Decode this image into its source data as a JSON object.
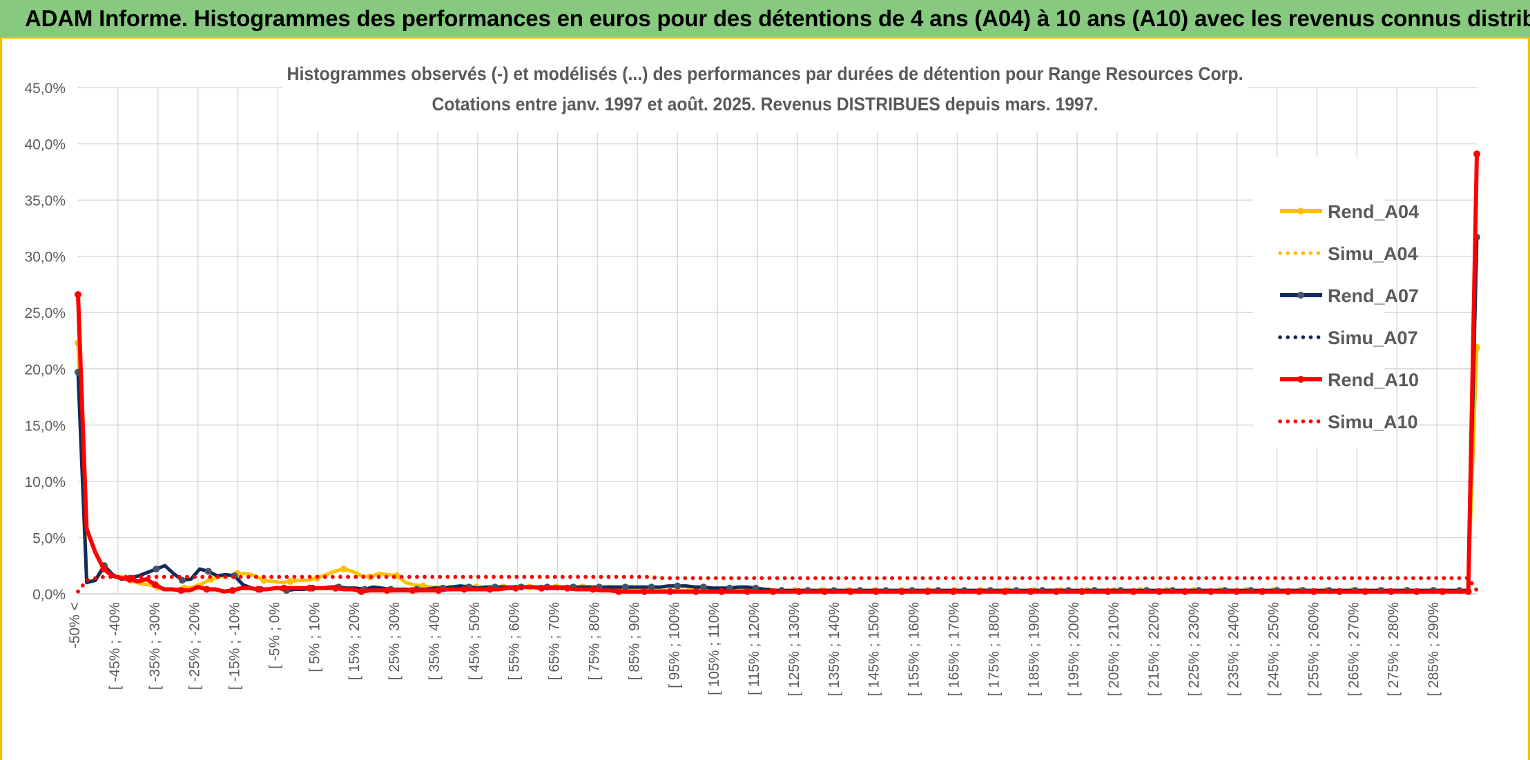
{
  "header": {
    "title": "ADAM Informe. Histogrammes des performances en euros pour des détentions de 4 ans (A04) à 10 ans (A10) avec les revenus connus distribués"
  },
  "chart_data": {
    "type": "line",
    "title_line1": "Histogrammes observés (-) et modélisés (...) des performances par durées de détention pour Range Resources Corp.",
    "title_line2": "Cotations entre janv. 1997 et août. 2025. Revenus DISTRIBUES depuis mars. 1997.",
    "ylim": [
      0,
      0.45
    ],
    "yticks": [
      "0,0%",
      "5,0%",
      "10,0%",
      "15,0%",
      "20,0%",
      "25,0%",
      "30,0%",
      "35,0%",
      "40,0%",
      "45,0%"
    ],
    "xtick_labels": [
      "-50% <",
      "[ -45% ; -40%",
      "[ -35% ; -30%",
      "[ -25% ; -20%",
      "[ -15% ; -10%",
      "[ -5% ; 0%",
      "[ 5% ; 10%",
      "[ 15% ; 20%",
      "[ 25% ; 30%",
      "[ 35% ; 40%",
      "[ 45% ; 50%",
      "[ 55% ; 60%",
      "[ 65% ; 70%",
      "[ 75% ; 80%",
      "[ 85% ; 90%",
      "[ 95% ; 100%",
      "[ 105% ; 110%",
      "[ 115% ; 120%",
      "[ 125% ; 130%",
      "[ 135% ; 140%",
      "[ 145% ; 150%",
      "[ 155% ; 160%",
      "[ 165% ; 170%",
      "[ 175% ; 180%",
      "[ 185% ; 190%",
      "[ 195% ; 200%",
      "[ 205% ; 210%",
      "[ 215% ; 220%",
      "[ 225% ; 230%",
      "[ 235% ; 240%",
      "[ 245% ; 250%",
      "[ 255% ; 260%",
      "[ 265% ; 270%",
      "[ 275% ; 280%",
      "[ 285% ; 290%"
    ],
    "legend": {
      "position": "right"
    },
    "grid": true,
    "series": [
      {
        "name": "Rend_A04",
        "style": "solid",
        "color": "#ffc000",
        "values": [
          0.223,
          0.01,
          0.012,
          0.025,
          0.016,
          0.015,
          0.012,
          0.009,
          0.008,
          0.006,
          0.004,
          0.004,
          0.005,
          0.006,
          0.009,
          0.013,
          0.015,
          0.016,
          0.018,
          0.018,
          0.016,
          0.012,
          0.011,
          0.01,
          0.011,
          0.012,
          0.012,
          0.014,
          0.017,
          0.02,
          0.022,
          0.02,
          0.016,
          0.015,
          0.018,
          0.017,
          0.016,
          0.01,
          0.008,
          0.007,
          0.006,
          0.006,
          0.005,
          0.006,
          0.007,
          0.006,
          0.006,
          0.006,
          0.006,
          0.005,
          0.006,
          0.006,
          0.006,
          0.005,
          0.006,
          0.006,
          0.006,
          0.006,
          0.006,
          0.005,
          0.005,
          0.005,
          0.004,
          0.004,
          0.004,
          0.004,
          0.003,
          0.003,
          0.003,
          0.003,
          0.003,
          0.003,
          0.003,
          0.003,
          0.003,
          0.003,
          0.003,
          0.003,
          0.003,
          0.003,
          0.003,
          0.003,
          0.003,
          0.003,
          0.003,
          0.003,
          0.003,
          0.003,
          0.003,
          0.003,
          0.003,
          0.003,
          0.003,
          0.003,
          0.003,
          0.003,
          0.003,
          0.003,
          0.003,
          0.003,
          0.003,
          0.003,
          0.003,
          0.003,
          0.003,
          0.003,
          0.003,
          0.003,
          0.003,
          0.003,
          0.003,
          0.003,
          0.003,
          0.003,
          0.003,
          0.003,
          0.003,
          0.003,
          0.003,
          0.003,
          0.003,
          0.003,
          0.003,
          0.003,
          0.003,
          0.003,
          0.003,
          0.003,
          0.003,
          0.003,
          0.003,
          0.003,
          0.003,
          0.003,
          0.003,
          0.003,
          0.003,
          0.003,
          0.003,
          0.003,
          0.003,
          0.003,
          0.003,
          0.003,
          0.003,
          0.003,
          0.003,
          0.003,
          0.003,
          0.003,
          0.003,
          0.003,
          0.003,
          0.003,
          0.003,
          0.003,
          0.003,
          0.003,
          0.219
        ]
      },
      {
        "name": "Simu_A04",
        "style": "dotted",
        "color": "#ffc000",
        "values": [
          0.002,
          0.012,
          0.014,
          0.015,
          0.015,
          0.015,
          0.015,
          0.015,
          0.015,
          0.015,
          0.015,
          0.015,
          0.015,
          0.015,
          0.015,
          0.015,
          0.015,
          0.015,
          0.015,
          0.015,
          0.015,
          0.015,
          0.015,
          0.015,
          0.015,
          0.015,
          0.015,
          0.015,
          0.015,
          0.015,
          0.015,
          0.015,
          0.015,
          0.015,
          0.015,
          0.015,
          0.015,
          0.015,
          0.015,
          0.015,
          0.015,
          0.015,
          0.015,
          0.015,
          0.015,
          0.015,
          0.015,
          0.015,
          0.015,
          0.015,
          0.015,
          0.015,
          0.015,
          0.015,
          0.015,
          0.015,
          0.015,
          0.015,
          0.015,
          0.015,
          0.015,
          0.015,
          0.015,
          0.015,
          0.015,
          0.015,
          0.015,
          0.014,
          0.014,
          0.014,
          0.014,
          0.014,
          0.014,
          0.014,
          0.014,
          0.014,
          0.014,
          0.014,
          0.014,
          0.014,
          0.014,
          0.014,
          0.014,
          0.014,
          0.014,
          0.014,
          0.014,
          0.014,
          0.014,
          0.014,
          0.014,
          0.014,
          0.014,
          0.014,
          0.014,
          0.014,
          0.014,
          0.014,
          0.014,
          0.014,
          0.014,
          0.014,
          0.014,
          0.014,
          0.014,
          0.014,
          0.014,
          0.014,
          0.014,
          0.014,
          0.014,
          0.014,
          0.014,
          0.014,
          0.014,
          0.014,
          0.014,
          0.014,
          0.014,
          0.014,
          0.014,
          0.014,
          0.014,
          0.014,
          0.014,
          0.014,
          0.014,
          0.014,
          0.014,
          0.014,
          0.014,
          0.014,
          0.014,
          0.014,
          0.014,
          0.014,
          0.014,
          0.014,
          0.014,
          0.014,
          0.014,
          0.014,
          0.014,
          0.014,
          0.014,
          0.014,
          0.014,
          0.014,
          0.014,
          0.014,
          0.014,
          0.014,
          0.014,
          0.014,
          0.014,
          0.014,
          0.014,
          0.014,
          0.014,
          0.014,
          0.003
        ]
      },
      {
        "name": "Rend_A07",
        "style": "solid",
        "color": "#0f2a5c",
        "values": [
          0.197,
          0.01,
          0.012,
          0.025,
          0.017,
          0.013,
          0.014,
          0.016,
          0.019,
          0.022,
          0.025,
          0.018,
          0.012,
          0.013,
          0.022,
          0.02,
          0.016,
          0.017,
          0.016,
          0.008,
          0.005,
          0.004,
          0.004,
          0.005,
          0.003,
          0.004,
          0.004,
          0.005,
          0.005,
          0.006,
          0.006,
          0.005,
          0.005,
          0.004,
          0.006,
          0.005,
          0.004,
          0.004,
          0.004,
          0.004,
          0.004,
          0.005,
          0.005,
          0.006,
          0.007,
          0.006,
          0.005,
          0.006,
          0.006,
          0.006,
          0.006,
          0.006,
          0.006,
          0.006,
          0.006,
          0.006,
          0.006,
          0.006,
          0.006,
          0.006,
          0.006,
          0.006,
          0.006,
          0.006,
          0.006,
          0.006,
          0.006,
          0.006,
          0.007,
          0.007,
          0.007,
          0.006,
          0.006,
          0.005,
          0.005,
          0.005,
          0.006,
          0.006,
          0.005,
          0.004,
          0.003,
          0.003,
          0.003,
          0.003,
          0.003,
          0.003,
          0.003,
          0.003,
          0.003,
          0.003,
          0.003,
          0.003,
          0.003,
          0.003,
          0.003,
          0.003,
          0.003,
          0.003,
          0.003,
          0.003,
          0.003,
          0.003,
          0.003,
          0.003,
          0.003,
          0.003,
          0.003,
          0.003,
          0.003,
          0.003,
          0.003,
          0.003,
          0.003,
          0.003,
          0.003,
          0.003,
          0.003,
          0.003,
          0.003,
          0.003,
          0.003,
          0.003,
          0.003,
          0.003,
          0.003,
          0.003,
          0.003,
          0.003,
          0.003,
          0.003,
          0.003,
          0.003,
          0.003,
          0.003,
          0.003,
          0.003,
          0.003,
          0.003,
          0.003,
          0.003,
          0.003,
          0.003,
          0.003,
          0.003,
          0.003,
          0.003,
          0.003,
          0.003,
          0.003,
          0.003,
          0.003,
          0.003,
          0.003,
          0.003,
          0.003,
          0.003,
          0.003,
          0.003,
          0.003,
          0.003,
          0.003,
          0.317
        ]
      },
      {
        "name": "Simu_A07",
        "style": "dotted",
        "color": "#0f2a5c",
        "values": [
          0.002,
          0.012,
          0.014,
          0.015,
          0.015,
          0.015,
          0.015,
          0.015,
          0.015,
          0.015,
          0.015,
          0.015,
          0.015,
          0.015,
          0.015,
          0.015,
          0.015,
          0.015,
          0.015,
          0.015,
          0.015,
          0.015,
          0.015,
          0.015,
          0.015,
          0.015,
          0.015,
          0.015,
          0.015,
          0.015,
          0.015,
          0.015,
          0.015,
          0.015,
          0.015,
          0.015,
          0.015,
          0.015,
          0.015,
          0.015,
          0.015,
          0.015,
          0.015,
          0.015,
          0.015,
          0.015,
          0.015,
          0.015,
          0.015,
          0.015,
          0.015,
          0.015,
          0.015,
          0.015,
          0.015,
          0.015,
          0.015,
          0.015,
          0.015,
          0.015,
          0.015,
          0.015,
          0.015,
          0.015,
          0.015,
          0.015,
          0.015,
          0.014,
          0.014,
          0.014,
          0.014,
          0.014,
          0.014,
          0.014,
          0.014,
          0.014,
          0.014,
          0.014,
          0.014,
          0.014,
          0.014,
          0.014,
          0.014,
          0.014,
          0.014,
          0.014,
          0.014,
          0.014,
          0.014,
          0.014,
          0.014,
          0.014,
          0.014,
          0.014,
          0.014,
          0.014,
          0.014,
          0.014,
          0.014,
          0.014,
          0.014,
          0.014,
          0.014,
          0.014,
          0.014,
          0.014,
          0.014,
          0.014,
          0.014,
          0.014,
          0.014,
          0.014,
          0.014,
          0.014,
          0.014,
          0.014,
          0.014,
          0.014,
          0.014,
          0.014,
          0.014,
          0.014,
          0.014,
          0.014,
          0.014,
          0.014,
          0.014,
          0.014,
          0.014,
          0.014,
          0.014,
          0.014,
          0.014,
          0.014,
          0.014,
          0.014,
          0.014,
          0.014,
          0.014,
          0.014,
          0.014,
          0.014,
          0.014,
          0.014,
          0.014,
          0.014,
          0.014,
          0.014,
          0.014,
          0.014,
          0.014,
          0.014,
          0.014,
          0.014,
          0.014,
          0.014,
          0.014,
          0.014,
          0.014,
          0.014,
          0.014,
          0.014,
          0.003
        ]
      },
      {
        "name": "Rend_A10",
        "style": "solid",
        "color": "#ff0000",
        "values": [
          0.266,
          0.058,
          0.037,
          0.022,
          0.016,
          0.014,
          0.013,
          0.011,
          0.013,
          0.008,
          0.004,
          0.004,
          0.003,
          0.003,
          0.006,
          0.004,
          0.004,
          0.002,
          0.003,
          0.005,
          0.005,
          0.004,
          0.004,
          0.005,
          0.005,
          0.005,
          0.005,
          0.005,
          0.005,
          0.005,
          0.005,
          0.004,
          0.004,
          0.002,
          0.003,
          0.003,
          0.003,
          0.003,
          0.003,
          0.003,
          0.003,
          0.003,
          0.003,
          0.004,
          0.004,
          0.004,
          0.004,
          0.004,
          0.004,
          0.004,
          0.005,
          0.005,
          0.006,
          0.006,
          0.005,
          0.005,
          0.005,
          0.005,
          0.004,
          0.004,
          0.004,
          0.003,
          0.003,
          0.002,
          0.002,
          0.002,
          0.002,
          0.002,
          0.002,
          0.002,
          0.002,
          0.002,
          0.002,
          0.002,
          0.002,
          0.002,
          0.002,
          0.002,
          0.002,
          0.002,
          0.002,
          0.002,
          0.002,
          0.002,
          0.002,
          0.002,
          0.002,
          0.002,
          0.002,
          0.002,
          0.002,
          0.002,
          0.002,
          0.002,
          0.002,
          0.002,
          0.002,
          0.002,
          0.002,
          0.002,
          0.002,
          0.002,
          0.002,
          0.002,
          0.002,
          0.002,
          0.002,
          0.002,
          0.002,
          0.002,
          0.002,
          0.002,
          0.002,
          0.002,
          0.002,
          0.002,
          0.002,
          0.002,
          0.002,
          0.002,
          0.002,
          0.002,
          0.002,
          0.002,
          0.002,
          0.002,
          0.002,
          0.002,
          0.002,
          0.002,
          0.002,
          0.002,
          0.002,
          0.002,
          0.002,
          0.002,
          0.002,
          0.002,
          0.002,
          0.002,
          0.002,
          0.002,
          0.002,
          0.002,
          0.002,
          0.002,
          0.002,
          0.002,
          0.002,
          0.002,
          0.002,
          0.002,
          0.002,
          0.002,
          0.002,
          0.002,
          0.002,
          0.002,
          0.002,
          0.002,
          0.002,
          0.002,
          0.002,
          0.391
        ]
      },
      {
        "name": "Simu_A10",
        "style": "dotted",
        "color": "#ff0000",
        "values": [
          0.002,
          0.012,
          0.014,
          0.015,
          0.015,
          0.015,
          0.015,
          0.015,
          0.015,
          0.015,
          0.015,
          0.015,
          0.015,
          0.015,
          0.015,
          0.015,
          0.015,
          0.015,
          0.015,
          0.015,
          0.015,
          0.015,
          0.015,
          0.015,
          0.015,
          0.015,
          0.015,
          0.015,
          0.015,
          0.015,
          0.015,
          0.015,
          0.015,
          0.015,
          0.015,
          0.015,
          0.015,
          0.015,
          0.015,
          0.015,
          0.015,
          0.015,
          0.015,
          0.015,
          0.015,
          0.015,
          0.015,
          0.015,
          0.015,
          0.015,
          0.015,
          0.015,
          0.015,
          0.015,
          0.015,
          0.015,
          0.015,
          0.015,
          0.015,
          0.015,
          0.015,
          0.015,
          0.015,
          0.015,
          0.015,
          0.015,
          0.015,
          0.014,
          0.014,
          0.014,
          0.014,
          0.014,
          0.014,
          0.014,
          0.014,
          0.014,
          0.014,
          0.014,
          0.014,
          0.014,
          0.014,
          0.014,
          0.014,
          0.014,
          0.014,
          0.014,
          0.014,
          0.014,
          0.014,
          0.014,
          0.014,
          0.014,
          0.014,
          0.014,
          0.014,
          0.014,
          0.014,
          0.014,
          0.014,
          0.014,
          0.014,
          0.014,
          0.014,
          0.014,
          0.014,
          0.014,
          0.014,
          0.014,
          0.014,
          0.014,
          0.014,
          0.014,
          0.014,
          0.014,
          0.014,
          0.014,
          0.014,
          0.014,
          0.014,
          0.014,
          0.014,
          0.014,
          0.014,
          0.014,
          0.014,
          0.014,
          0.014,
          0.014,
          0.014,
          0.014,
          0.014,
          0.014,
          0.014,
          0.014,
          0.014,
          0.014,
          0.014,
          0.014,
          0.014,
          0.014,
          0.014,
          0.014,
          0.014,
          0.014,
          0.014,
          0.014,
          0.014,
          0.014,
          0.014,
          0.014,
          0.014,
          0.014,
          0.014,
          0.014,
          0.014,
          0.014,
          0.014,
          0.014,
          0.014,
          0.014,
          0.014,
          0.014,
          0.003
        ]
      }
    ]
  }
}
